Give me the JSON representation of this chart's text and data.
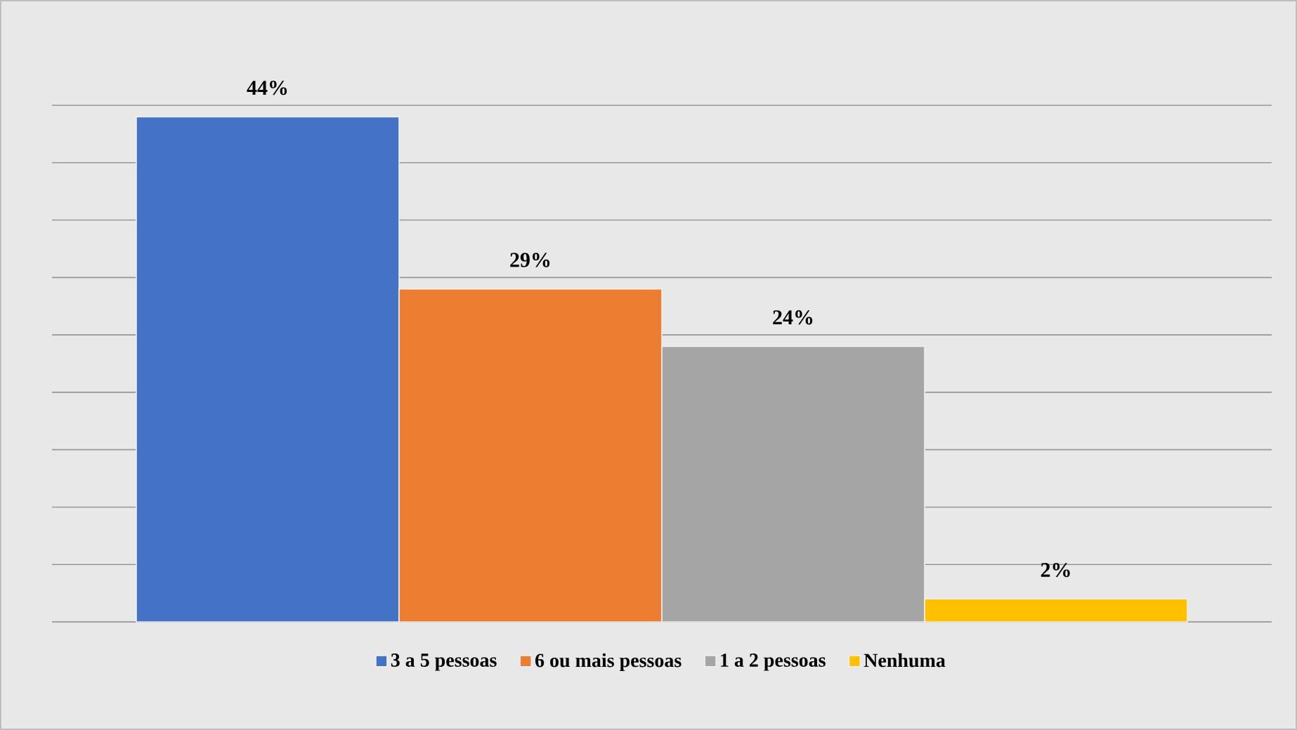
{
  "chart_data": {
    "type": "bar",
    "categories": [
      null
    ],
    "series": [
      {
        "name": "3 a 5 pessoas",
        "color": "#4472c4",
        "values": [
          44
        ],
        "value_labels": [
          "44%"
        ]
      },
      {
        "name": "6 ou mais pessoas",
        "color": "#ed7d31",
        "values": [
          29
        ],
        "value_labels": [
          "29%"
        ]
      },
      {
        "name": "1 a 2 pessoas",
        "color": "#a5a5a5",
        "values": [
          24
        ],
        "value_labels": [
          "24%"
        ]
      },
      {
        "name": "Nenhuma",
        "color": "#ffc000",
        "values": [
          2
        ],
        "value_labels": [
          "2%"
        ]
      }
    ],
    "grid": "y",
    "legend": "bottom"
  }
}
